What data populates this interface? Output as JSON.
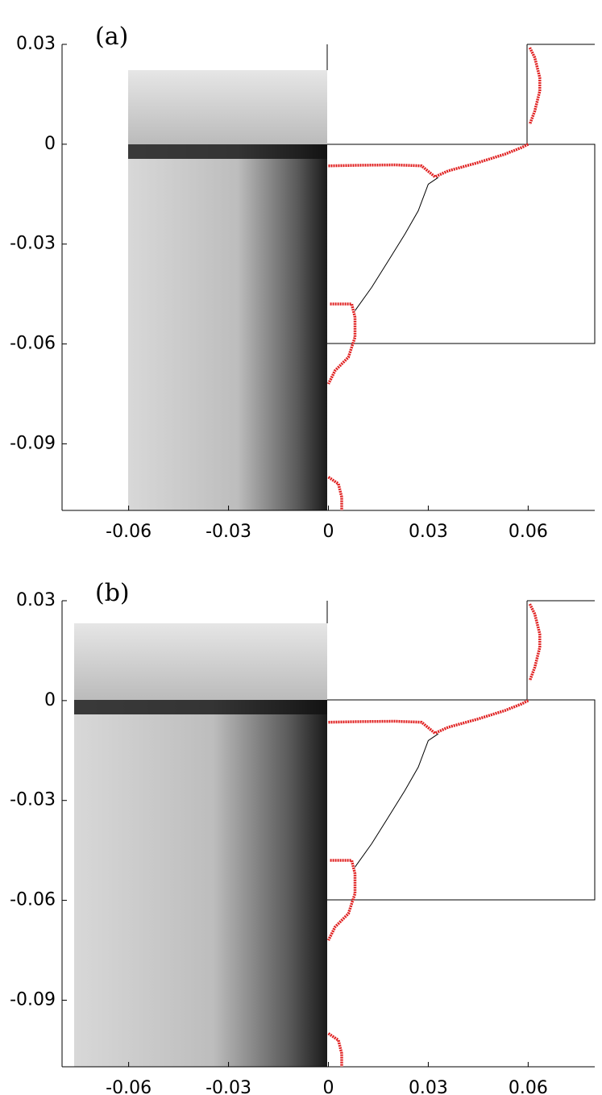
{
  "chart_data": [
    {
      "type": "line",
      "panel_label": "(a)",
      "xlim": [
        -0.08,
        0.08
      ],
      "ylim": [
        -0.11,
        0.03
      ],
      "xticks": [
        -0.06,
        -0.03,
        0,
        0.03,
        0.06
      ],
      "yticks": [
        0.03,
        0,
        -0.03,
        -0.06,
        -0.09
      ],
      "series": [
        {
          "color": "#e02020",
          "x": [
            0,
            0.01,
            0.02,
            0.028,
            0.032,
            0.036,
            0.045,
            0.053,
            0.058,
            0.06
          ],
          "values": [
            -0.0065,
            -0.0063,
            -0.0062,
            -0.0065,
            -0.0098,
            -0.008,
            -0.0055,
            -0.003,
            -0.001,
            0
          ]
        },
        {
          "color": "#e02020",
          "x": [
            0.0605,
            0.062,
            0.0635,
            0.0635,
            0.062,
            0.0605
          ],
          "values": [
            0.029,
            0.026,
            0.02,
            0.016,
            0.01,
            0.006
          ]
        },
        {
          "color": "#e02020",
          "x": [
            0.0005,
            0.007,
            0.008,
            0.008,
            0.006,
            0.002,
            0
          ],
          "values": [
            -0.048,
            -0.048,
            -0.052,
            -0.058,
            -0.064,
            -0.068,
            -0.072
          ]
        },
        {
          "color": "#e02020",
          "x": [
            0,
            0.003,
            0.004,
            0.004
          ],
          "values": [
            -0.1,
            -0.102,
            -0.106,
            -0.11
          ]
        },
        {
          "color": "#000000",
          "x": [
            0.008,
            0.013,
            0.018,
            0.023,
            0.027,
            0.03,
            0.033
          ],
          "values": [
            -0.05,
            -0.043,
            -0.035,
            -0.027,
            -0.02,
            -0.012,
            -0.01
          ]
        }
      ]
    },
    {
      "type": "line",
      "panel_label": "(b)",
      "xlim": [
        -0.08,
        0.08
      ],
      "ylim": [
        -0.11,
        0.03
      ],
      "xticks": [
        -0.06,
        -0.03,
        0,
        0.03,
        0.06
      ],
      "yticks": [
        0.03,
        0,
        -0.03,
        -0.06,
        -0.09
      ],
      "series": [
        {
          "color": "#e02020",
          "x": [
            0,
            0.01,
            0.02,
            0.028,
            0.032,
            0.036,
            0.045,
            0.053,
            0.058,
            0.06
          ],
          "values": [
            -0.0065,
            -0.0063,
            -0.0062,
            -0.0065,
            -0.0098,
            -0.008,
            -0.0055,
            -0.003,
            -0.001,
            0
          ]
        },
        {
          "color": "#e02020",
          "x": [
            0.0605,
            0.062,
            0.0635,
            0.0635,
            0.062,
            0.0605
          ],
          "values": [
            0.029,
            0.026,
            0.02,
            0.016,
            0.01,
            0.006
          ]
        },
        {
          "color": "#e02020",
          "x": [
            0.0005,
            0.007,
            0.008,
            0.008,
            0.006,
            0.002,
            0
          ],
          "values": [
            -0.048,
            -0.048,
            -0.052,
            -0.058,
            -0.064,
            -0.068,
            -0.072
          ]
        },
        {
          "color": "#e02020",
          "x": [
            0,
            0.003,
            0.004,
            0.004
          ],
          "values": [
            -0.1,
            -0.102,
            -0.106,
            -0.11
          ]
        },
        {
          "color": "#000000",
          "x": [
            0.008,
            0.013,
            0.018,
            0.023,
            0.027,
            0.03,
            0.033
          ],
          "values": [
            -0.05,
            -0.043,
            -0.035,
            -0.027,
            -0.02,
            -0.012,
            -0.01
          ]
        }
      ]
    }
  ]
}
